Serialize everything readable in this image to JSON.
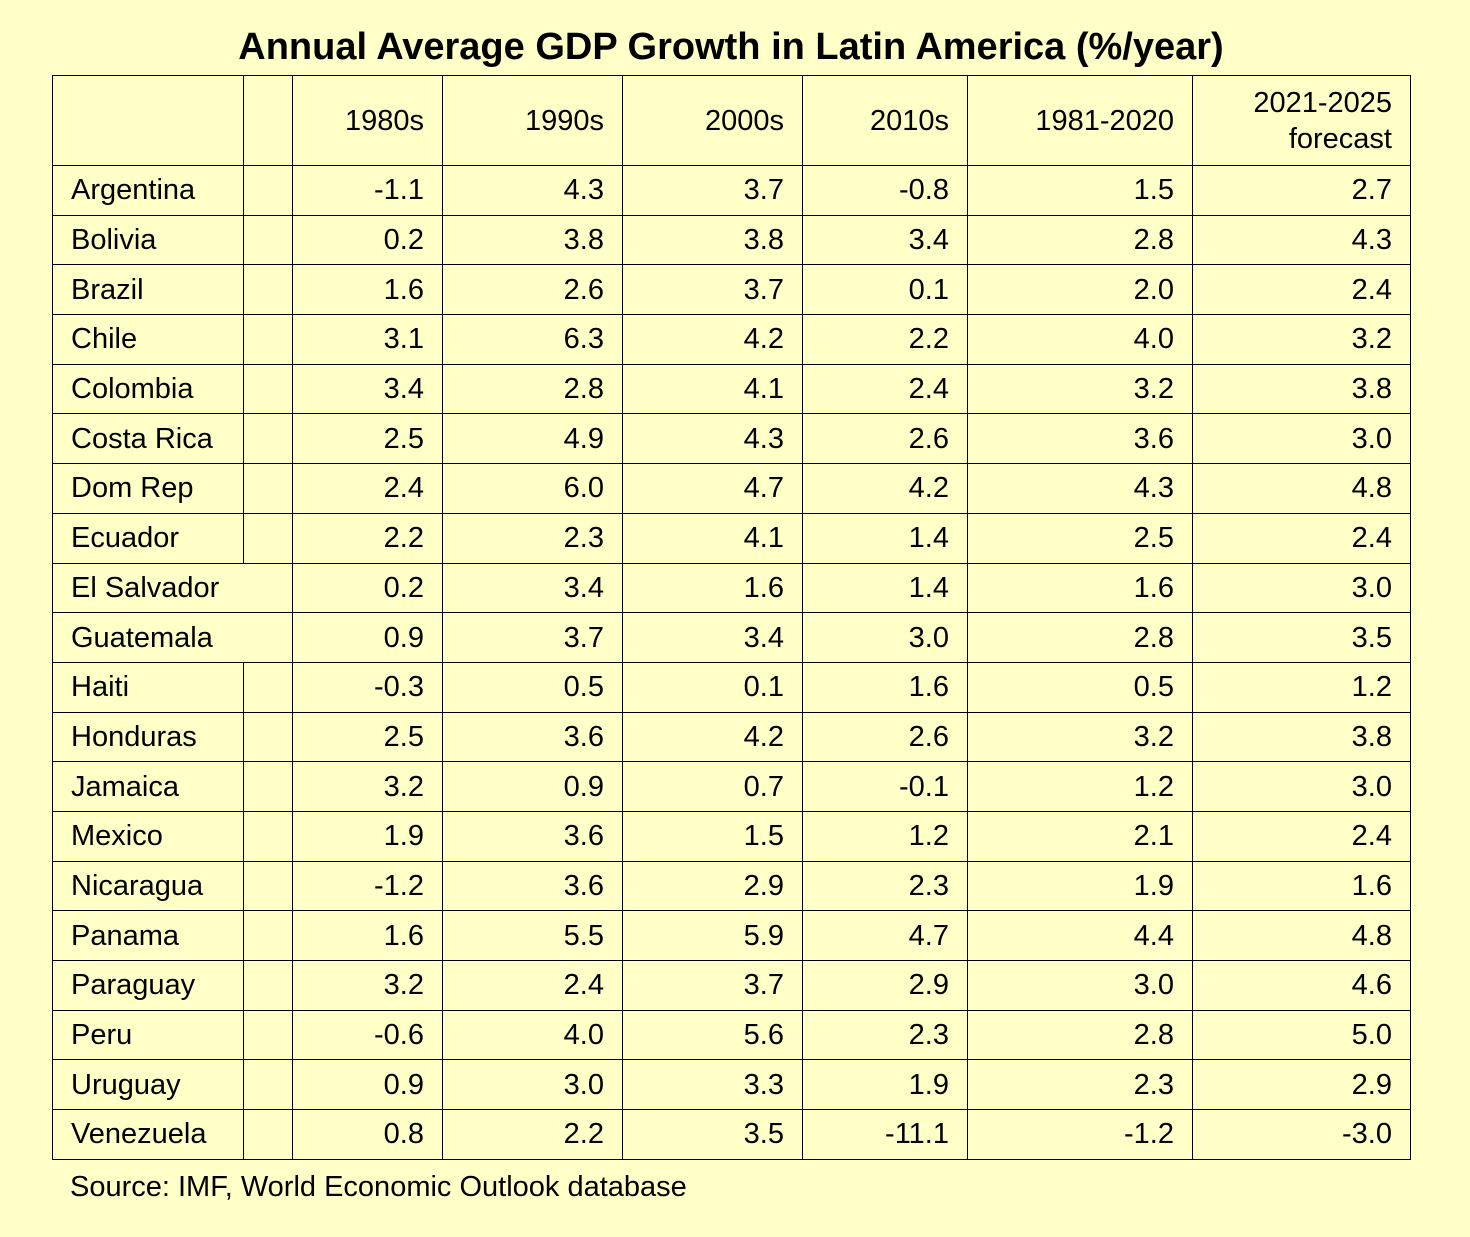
{
  "chart_data": {
    "type": "table",
    "title": "Annual Average GDP Growth in Latin America (%/year)",
    "columns": [
      "1980s",
      "1990s",
      "2000s",
      "2010s",
      "1981-2020",
      "2021-2025 forecast"
    ],
    "rows": [
      {
        "country": "Argentina",
        "values": [
          "-1.1",
          "4.3",
          "3.7",
          "-0.8",
          "1.5",
          "2.7"
        ]
      },
      {
        "country": "Bolivia",
        "values": [
          "0.2",
          "3.8",
          "3.8",
          "3.4",
          "2.8",
          "4.3"
        ]
      },
      {
        "country": "Brazil",
        "values": [
          "1.6",
          "2.6",
          "3.7",
          "0.1",
          "2.0",
          "2.4"
        ]
      },
      {
        "country": "Chile",
        "values": [
          "3.1",
          "6.3",
          "4.2",
          "2.2",
          "4.0",
          "3.2"
        ]
      },
      {
        "country": "Colombia",
        "values": [
          "3.4",
          "2.8",
          "4.1",
          "2.4",
          "3.2",
          "3.8"
        ]
      },
      {
        "country": "Costa Rica",
        "values": [
          "2.5",
          "4.9",
          "4.3",
          "2.6",
          "3.6",
          "3.0"
        ]
      },
      {
        "country": "Dom Rep",
        "values": [
          "2.4",
          "6.0",
          "4.7",
          "4.2",
          "4.3",
          "4.8"
        ]
      },
      {
        "country": "Ecuador",
        "values": [
          "2.2",
          "2.3",
          "4.1",
          "1.4",
          "2.5",
          "2.4"
        ]
      },
      {
        "country": "El Salvador",
        "values": [
          "0.2",
          "3.4",
          "1.6",
          "1.4",
          "1.6",
          "3.0"
        ]
      },
      {
        "country": "Guatemala",
        "values": [
          "0.9",
          "3.7",
          "3.4",
          "3.0",
          "2.8",
          "3.5"
        ]
      },
      {
        "country": "Haiti",
        "values": [
          "-0.3",
          "0.5",
          "0.1",
          "1.6",
          "0.5",
          "1.2"
        ]
      },
      {
        "country": "Honduras",
        "values": [
          "2.5",
          "3.6",
          "4.2",
          "2.6",
          "3.2",
          "3.8"
        ]
      },
      {
        "country": "Jamaica",
        "values": [
          "3.2",
          "0.9",
          "0.7",
          "-0.1",
          "1.2",
          "3.0"
        ]
      },
      {
        "country": "Mexico",
        "values": [
          "1.9",
          "3.6",
          "1.5",
          "1.2",
          "2.1",
          "2.4"
        ]
      },
      {
        "country": "Nicaragua",
        "values": [
          "-1.2",
          "3.6",
          "2.9",
          "2.3",
          "1.9",
          "1.6"
        ]
      },
      {
        "country": "Panama",
        "values": [
          "1.6",
          "5.5",
          "5.9",
          "4.7",
          "4.4",
          "4.8"
        ]
      },
      {
        "country": "Paraguay",
        "values": [
          "3.2",
          "2.4",
          "3.7",
          "2.9",
          "3.0",
          "4.6"
        ]
      },
      {
        "country": "Peru",
        "values": [
          "-0.6",
          "4.0",
          "5.6",
          "2.3",
          "2.8",
          "5.0"
        ]
      },
      {
        "country": "Uruguay",
        "values": [
          "0.9",
          "3.0",
          "3.3",
          "1.9",
          "2.3",
          "2.9"
        ]
      },
      {
        "country": "Venezuela",
        "values": [
          "0.8",
          "2.2",
          "3.5",
          "-11.1",
          "-1.2",
          "-3.0"
        ]
      }
    ],
    "source": "Source: IMF, World Economic Outlook database"
  }
}
